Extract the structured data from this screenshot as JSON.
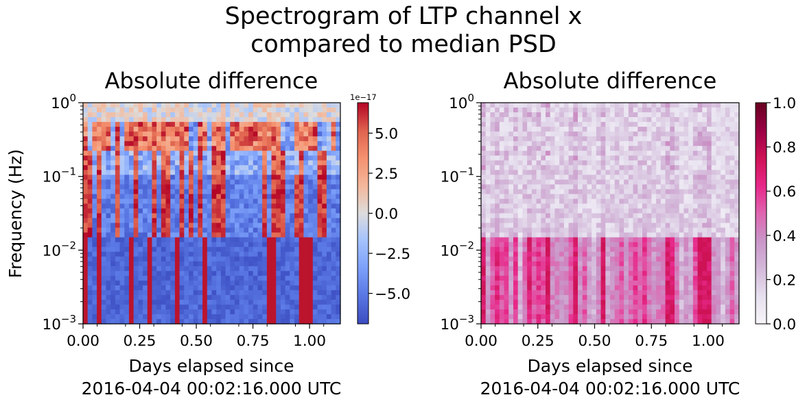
{
  "figure": {
    "title_line1": "Spectrogram of LTP channel x",
    "title_line2": "compared to median PSD"
  },
  "chart_data": [
    {
      "type": "heatmap",
      "title": "Absolute difference",
      "xlabel_line1": "Days elapsed since",
      "xlabel_line2": "2016-04-04 00:02:16.000 UTC",
      "ylabel": "Frequency (Hz)",
      "x_ticks": [
        "0.00",
        "0.25",
        "0.50",
        "0.75",
        "1.00"
      ],
      "x_tick_values": [
        0,
        0.25,
        0.5,
        0.75,
        1.0
      ],
      "xlim": [
        0,
        1.136
      ],
      "y_scale": "log",
      "y_ticks": [
        {
          "base": "10",
          "exp": "0"
        },
        {
          "base": "10",
          "exp": "−1"
        },
        {
          "base": "10",
          "exp": "−2"
        },
        {
          "base": "10",
          "exp": "−3"
        }
      ],
      "y_tick_values": [
        1,
        0.1,
        0.01,
        0.001
      ],
      "ylim": [
        0.001,
        1
      ],
      "colormap": "coolwarm",
      "colorbar": {
        "ticks": [
          "5.0",
          "2.5",
          "0.0",
          "−2.5",
          "−5.0"
        ],
        "tick_values": [
          5,
          2.5,
          0,
          -2.5,
          -5
        ],
        "range": [
          -6.9,
          6.9
        ],
        "offset_label": "1e−17"
      },
      "colors": {
        "low": "#3b4cc0",
        "mid": "#dddddd",
        "high": "#b40426"
      }
    },
    {
      "type": "heatmap",
      "title": "Absolute difference",
      "xlabel_line1": "Days elapsed since",
      "xlabel_line2": "2016-04-04 00:02:16.000 UTC",
      "x_ticks": [
        "0.00",
        "0.25",
        "0.50",
        "0.75",
        "1.00"
      ],
      "x_tick_values": [
        0,
        0.25,
        0.5,
        0.75,
        1.0
      ],
      "xlim": [
        0,
        1.136
      ],
      "y_scale": "log",
      "y_ticks": [
        {
          "base": "10",
          "exp": "0"
        },
        {
          "base": "10",
          "exp": "−1"
        },
        {
          "base": "10",
          "exp": "−2"
        },
        {
          "base": "10",
          "exp": "−3"
        }
      ],
      "y_tick_values": [
        1,
        0.1,
        0.01,
        0.001
      ],
      "ylim": [
        0.001,
        1
      ],
      "colormap": "PuRd",
      "colorbar": {
        "ticks": [
          "1.0",
          "0.8",
          "0.6",
          "0.4",
          "0.2",
          "0.0"
        ],
        "tick_values": [
          1.0,
          0.8,
          0.6,
          0.4,
          0.2,
          0.0
        ],
        "range": [
          0,
          1
        ]
      },
      "colors": {
        "low": "#f7f4f9",
        "mid": "#df65b0",
        "high": "#67001f"
      }
    }
  ]
}
